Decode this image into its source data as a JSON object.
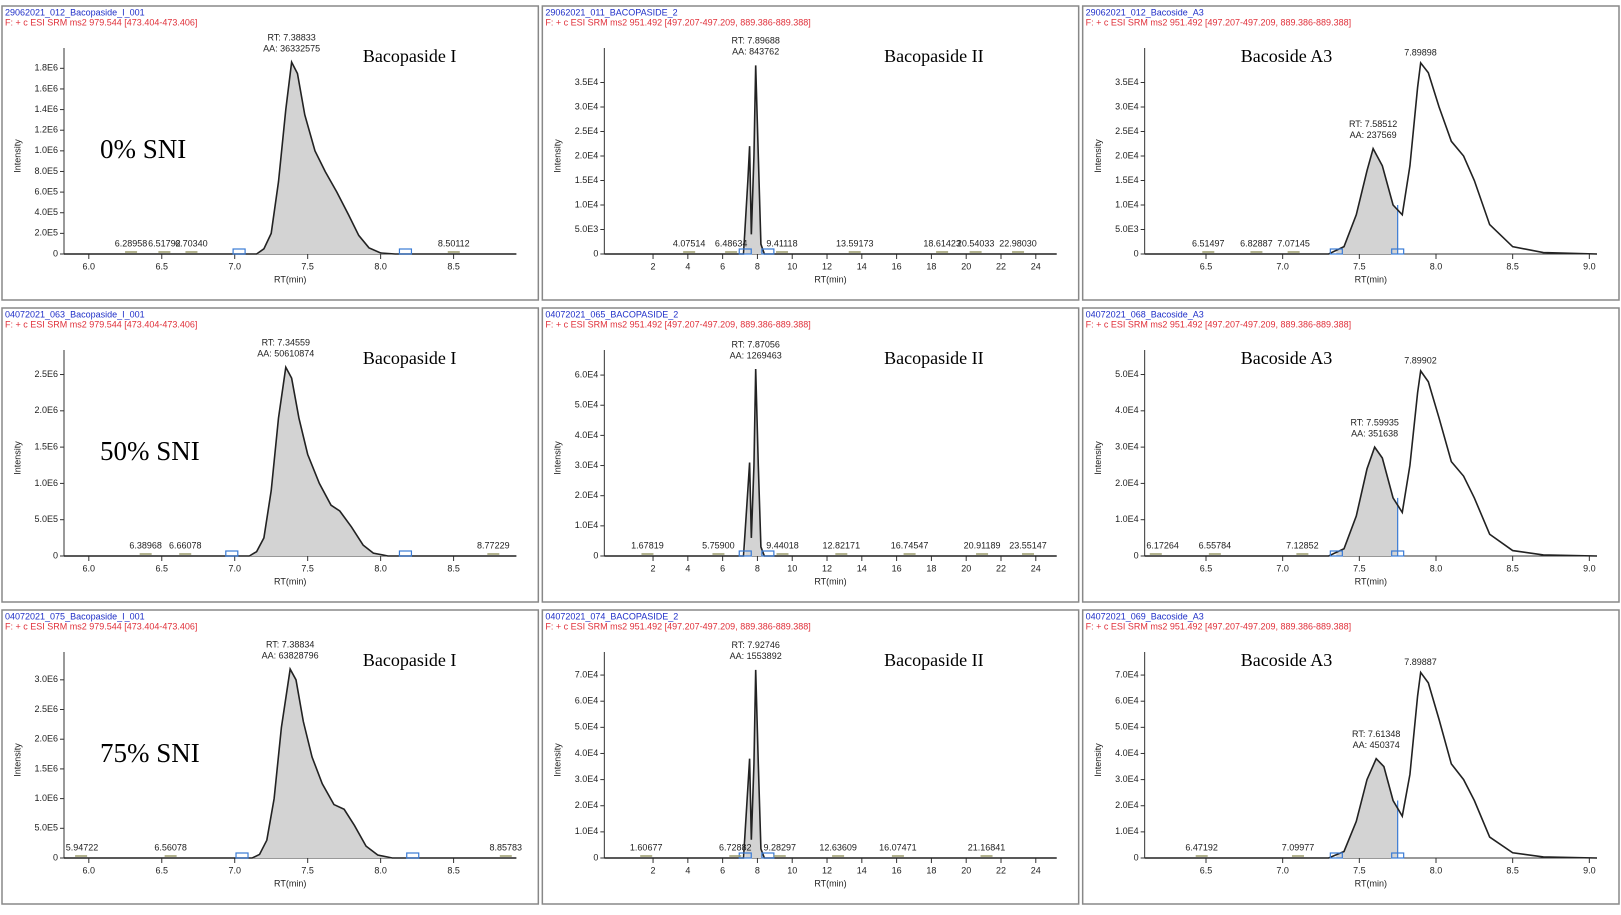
{
  "chart_data": [
    {
      "type": "line",
      "header_id": "29062021_012_Bacopaside_I_001",
      "header_filter": "F: + c ESI SRM ms2 979.544 [473.404-473.406]",
      "title": "Bacopaside I",
      "condition": "0% SNI",
      "xlabel": "RT(min)",
      "ylabel": "Intensity",
      "x": [
        5.83,
        7.15,
        7.2,
        7.25,
        7.3,
        7.35,
        7.39,
        7.43,
        7.48,
        7.55,
        7.62,
        7.7,
        7.78,
        7.85,
        7.92,
        8.0,
        8.1,
        8.93
      ],
      "values": [
        0,
        0,
        50000,
        200000,
        700000,
        1400000,
        1860000,
        1750000,
        1350000,
        1000000,
        800000,
        600000,
        380000,
        180000,
        60000,
        10000,
        0,
        0
      ],
      "xlim": [
        5.83,
        8.93
      ],
      "ylim": [
        0,
        1900000
      ],
      "xticks": [
        {
          "value": 6,
          "label": "6.0"
        },
        6.5,
        {
          "value": 7,
          "label": "7.0"
        },
        7.5,
        {
          "value": 8,
          "label": "8.0"
        },
        8.5
      ],
      "yticks": [
        0,
        {
          "value": 200000,
          "label": "2.0E5"
        },
        {
          "value": 400000,
          "label": "4.0E5"
        },
        {
          "value": 600000,
          "label": "6.0E5"
        },
        {
          "value": 800000,
          "label": "8.0E5"
        },
        {
          "value": 1000000,
          "label": "1.0E6"
        },
        {
          "value": 1200000,
          "label": "1.2E6"
        },
        {
          "value": 1400000,
          "label": "1.4E6"
        },
        {
          "value": 1600000,
          "label": "1.6E6"
        },
        {
          "value": 1800000,
          "label": "1.8E6"
        }
      ],
      "integration": [
        7.03,
        8.17
      ],
      "annotation": [
        "RT: 7.38833",
        "AA: 36332575"
      ],
      "peak_labels": [
        {
          "value": 6.28958,
          "label": "6.28958"
        },
        {
          "value": 6.51792,
          "label": "6.51792"
        },
        {
          "value": 6.7034,
          "label": "6.70340"
        },
        {
          "value": 8.50112,
          "label": "8.50112"
        }
      ],
      "color": "#222222",
      "fill": "#d3d3d3"
    },
    {
      "type": "line",
      "header_id": "29062021_011_BACOPASIDE_2",
      "header_filter": "F: + c ESI SRM ms2 951.492 [497.207-497.209, 889.386-889.388]",
      "title": "Bacopaside II",
      "xlabel": "RT(min)",
      "ylabel": "Intensity",
      "x": [
        -0.8,
        7.2,
        7.45,
        7.55,
        7.65,
        7.8,
        7.9,
        8.05,
        8.2,
        8.4,
        25.2
      ],
      "values": [
        0,
        0,
        15000,
        22000,
        4000,
        20000,
        38500,
        20000,
        2000,
        0,
        0
      ],
      "xlim": [
        -0.8,
        25.2
      ],
      "ylim": [
        0,
        40000
      ],
      "xticks": [
        2,
        4,
        6,
        8,
        10,
        12,
        14,
        16,
        18,
        20,
        22,
        24
      ],
      "yticks": [
        0,
        {
          "value": 5000,
          "label": "5.0E3"
        },
        {
          "value": 10000,
          "label": "1.0E4"
        },
        {
          "value": 15000,
          "label": "1.5E4"
        },
        {
          "value": 20000,
          "label": "2.0E4"
        },
        {
          "value": 25000,
          "label": "2.5E4"
        },
        {
          "value": 30000,
          "label": "3.0E4"
        },
        {
          "value": 35000,
          "label": "3.5E4"
        }
      ],
      "integration": [
        7.3,
        8.6
      ],
      "annotation": [
        "RT: 7.89688",
        "AA: 843762"
      ],
      "peak_labels": [
        {
          "value": 4.07514,
          "label": "4.07514"
        },
        {
          "value": 6.48634,
          "label": "6.48634"
        },
        {
          "value": 9.41118,
          "label": "9.41118"
        },
        {
          "value": 13.59173,
          "label": "13.59173"
        },
        {
          "value": 18.61423,
          "label": "18.61423"
        },
        {
          "value": 20.54033,
          "label": "20.54033"
        },
        {
          "value": 22.9803,
          "label": "22.98030"
        }
      ],
      "color": "#222222",
      "fill": "#d3d3d3"
    },
    {
      "type": "line",
      "header_id": "29062021_012_Bacoside_A3",
      "header_filter": "F: + c ESI SRM ms2 951.492 [497.207-497.209, 889.386-889.388]",
      "title": "Bacoside A3",
      "xlabel": "RT(min)",
      "ylabel": "Intensity",
      "x": [
        6.1,
        7.3,
        7.4,
        7.48,
        7.55,
        7.59,
        7.65,
        7.72,
        7.78,
        7.83,
        7.88,
        7.9,
        7.95,
        8.02,
        8.1,
        8.18,
        8.25,
        8.35,
        8.5,
        8.7,
        9.05
      ],
      "values": [
        0,
        0,
        1500,
        8000,
        17000,
        21500,
        18000,
        10000,
        8000,
        18000,
        34000,
        39000,
        37000,
        30000,
        23000,
        20000,
        15000,
        6000,
        1500,
        300,
        0
      ],
      "xlim": [
        6.1,
        9.05
      ],
      "ylim": [
        0,
        40000
      ],
      "xticks": [
        6.5,
        {
          "value": 7,
          "label": "7.0"
        },
        7.5,
        {
          "value": 8,
          "label": "8.0"
        },
        8.5,
        {
          "value": 9,
          "label": "9.0"
        }
      ],
      "yticks": [
        0,
        {
          "value": 5000,
          "label": "5.0E3"
        },
        {
          "value": 10000,
          "label": "1.0E4"
        },
        {
          "value": 15000,
          "label": "1.5E4"
        },
        {
          "value": 20000,
          "label": "2.0E4"
        },
        {
          "value": 25000,
          "label": "2.5E4"
        },
        {
          "value": 30000,
          "label": "3.0E4"
        },
        {
          "value": 35000,
          "label": "3.5E4"
        }
      ],
      "integration": [
        7.35,
        7.75
      ],
      "annotation": [
        "RT: 7.58512",
        "AA: 237569"
      ],
      "peak_labels": [
        {
          "value": 6.51497,
          "label": "6.51497"
        },
        {
          "value": 6.82887,
          "label": "6.82887"
        },
        {
          "value": 7.07145,
          "label": "7.07145"
        }
      ],
      "apex_label": {
        "value": 7.89898,
        "label": "7.89898"
      },
      "color": "#222222",
      "fill": "#d3d3d3"
    },
    {
      "type": "line",
      "header_id": "04072021_063_Bacopaside_I_001",
      "header_filter": "F: + c ESI SRM ms2 979.544 [473.404-473.406]",
      "title": "Bacopaside I",
      "condition": "50% SNI",
      "xlabel": "RT(min)",
      "ylabel": "Intensity",
      "x": [
        5.83,
        7.1,
        7.15,
        7.2,
        7.25,
        7.3,
        7.35,
        7.39,
        7.44,
        7.5,
        7.58,
        7.66,
        7.72,
        7.8,
        7.88,
        7.95,
        8.05,
        8.93
      ],
      "values": [
        0,
        0,
        60000,
        250000,
        900000,
        1900000,
        2600000,
        2450000,
        1900000,
        1400000,
        1000000,
        700000,
        620000,
        400000,
        150000,
        40000,
        0,
        0
      ],
      "xlim": [
        5.83,
        8.93
      ],
      "ylim": [
        0,
        2700000
      ],
      "xticks": [
        {
          "value": 6,
          "label": "6.0"
        },
        6.5,
        {
          "value": 7,
          "label": "7.0"
        },
        7.5,
        {
          "value": 8,
          "label": "8.0"
        },
        8.5
      ],
      "yticks": [
        0,
        {
          "value": 500000,
          "label": "5.0E5"
        },
        {
          "value": 1000000,
          "label": "1.0E6"
        },
        {
          "value": 1500000,
          "label": "1.5E6"
        },
        {
          "value": 2000000,
          "label": "2.0E6"
        },
        {
          "value": 2500000,
          "label": "2.5E6"
        }
      ],
      "integration": [
        6.98,
        8.17
      ],
      "annotation": [
        "RT: 7.34559",
        "AA: 50610874"
      ],
      "peak_labels": [
        {
          "value": 6.38968,
          "label": "6.38968"
        },
        {
          "value": 6.66078,
          "label": "6.66078"
        },
        {
          "value": 8.77229,
          "label": "8.77229"
        }
      ],
      "color": "#222222",
      "fill": "#d3d3d3"
    },
    {
      "type": "line",
      "header_id": "04072021_065_BACOPASIDE_2",
      "header_filter": "F: + c ESI SRM ms2 951.492 [497.207-497.209, 889.386-889.388]",
      "title": "Bacopaside II",
      "xlabel": "RT(min)",
      "ylabel": "Intensity",
      "x": [
        -0.8,
        7.2,
        7.45,
        7.55,
        7.65,
        7.8,
        7.9,
        8.05,
        8.2,
        8.4,
        25.2
      ],
      "values": [
        0,
        0,
        22000,
        31000,
        6000,
        30000,
        62000,
        30000,
        3000,
        0,
        0
      ],
      "xlim": [
        -0.8,
        25.2
      ],
      "ylim": [
        0,
        65000
      ],
      "xticks": [
        2,
        4,
        6,
        8,
        10,
        12,
        14,
        16,
        18,
        20,
        22,
        24
      ],
      "yticks": [
        0,
        {
          "value": 10000,
          "label": "1.0E4"
        },
        {
          "value": 20000,
          "label": "2.0E4"
        },
        {
          "value": 30000,
          "label": "3.0E4"
        },
        {
          "value": 40000,
          "label": "4.0E4"
        },
        {
          "value": 50000,
          "label": "5.0E4"
        },
        {
          "value": 60000,
          "label": "6.0E4"
        }
      ],
      "integration": [
        7.3,
        8.6
      ],
      "annotation": [
        "RT: 7.87056",
        "AA: 1269463"
      ],
      "peak_labels": [
        {
          "value": 1.67819,
          "label": "1.67819"
        },
        {
          "value": 5.759,
          "label": "5.75900"
        },
        {
          "value": 9.44018,
          "label": "9.44018"
        },
        {
          "value": 12.82171,
          "label": "12.82171"
        },
        {
          "value": 16.74547,
          "label": "16.74547"
        },
        {
          "value": 20.91189,
          "label": "20.91189"
        },
        {
          "value": 23.55147,
          "label": "23.55147"
        }
      ],
      "color": "#222222",
      "fill": "#d3d3d3"
    },
    {
      "type": "line",
      "header_id": "04072021_068_Bacoside_A3",
      "header_filter": "F: + c ESI SRM ms2 951.492 [497.207-497.209, 889.386-889.388]",
      "title": "Bacoside A3",
      "xlabel": "RT(min)",
      "ylabel": "Intensity",
      "x": [
        6.1,
        7.3,
        7.4,
        7.48,
        7.55,
        7.6,
        7.65,
        7.72,
        7.78,
        7.83,
        7.88,
        7.9,
        7.95,
        8.02,
        8.1,
        8.18,
        8.25,
        8.35,
        8.5,
        8.7,
        9.05
      ],
      "values": [
        0,
        0,
        2000,
        11000,
        24000,
        30000,
        27000,
        16000,
        12000,
        25000,
        45000,
        51000,
        48000,
        38000,
        26000,
        22000,
        16000,
        6000,
        1500,
        300,
        0
      ],
      "xlim": [
        6.1,
        9.05
      ],
      "ylim": [
        0,
        54000
      ],
      "xticks": [
        6.5,
        {
          "value": 7,
          "label": "7.0"
        },
        7.5,
        {
          "value": 8,
          "label": "8.0"
        },
        8.5,
        {
          "value": 9,
          "label": "9.0"
        }
      ],
      "yticks": [
        0,
        {
          "value": 10000,
          "label": "1.0E4"
        },
        {
          "value": 20000,
          "label": "2.0E4"
        },
        {
          "value": 30000,
          "label": "3.0E4"
        },
        {
          "value": 40000,
          "label": "4.0E4"
        },
        {
          "value": 50000,
          "label": "5.0E4"
        }
      ],
      "integration": [
        7.35,
        7.75
      ],
      "annotation": [
        "RT: 7.59935",
        "AA: 351638"
      ],
      "peak_labels": [
        {
          "value": 6.17264,
          "label": "6.17264"
        },
        {
          "value": 6.55784,
          "label": "6.55784"
        },
        {
          "value": 7.12852,
          "label": "7.12852"
        }
      ],
      "apex_label": {
        "value": 7.89902,
        "label": "7.89902"
      },
      "color": "#222222",
      "fill": "#d3d3d3"
    },
    {
      "type": "line",
      "header_id": "04072021_075_Bacopaside_I_001",
      "header_filter": "F: + c ESI SRM ms2 979.544 [473.404-473.406]",
      "title": "Bacopaside I",
      "condition": "75% SNI",
      "xlabel": "RT(min)",
      "ylabel": "Intensity",
      "x": [
        5.83,
        7.12,
        7.17,
        7.22,
        7.27,
        7.32,
        7.38,
        7.42,
        7.47,
        7.53,
        7.6,
        7.68,
        7.75,
        7.82,
        7.9,
        7.98,
        8.08,
        8.93
      ],
      "values": [
        0,
        0,
        60000,
        300000,
        1000000,
        2200000,
        3180000,
        3000000,
        2300000,
        1700000,
        1250000,
        900000,
        820000,
        550000,
        200000,
        50000,
        0,
        0
      ],
      "xlim": [
        5.83,
        8.93
      ],
      "ylim": [
        0,
        3300000
      ],
      "xticks": [
        {
          "value": 6,
          "label": "6.0"
        },
        6.5,
        {
          "value": 7,
          "label": "7.0"
        },
        7.5,
        {
          "value": 8,
          "label": "8.0"
        },
        8.5
      ],
      "yticks": [
        0,
        {
          "value": 500000,
          "label": "5.0E5"
        },
        {
          "value": 1000000,
          "label": "1.0E6"
        },
        {
          "value": 1500000,
          "label": "1.5E6"
        },
        {
          "value": 2000000,
          "label": "2.0E6"
        },
        {
          "value": 2500000,
          "label": "2.5E6"
        },
        {
          "value": 3000000,
          "label": "3.0E6"
        }
      ],
      "integration": [
        7.05,
        8.22
      ],
      "annotation": [
        "RT: 7.38834",
        "AA: 63828796"
      ],
      "peak_labels": [
        {
          "value": 5.94722,
          "label": "5.94722"
        },
        {
          "value": 6.56078,
          "label": "6.56078"
        },
        {
          "value": 8.85783,
          "label": "8.85783"
        }
      ],
      "color": "#222222",
      "fill": "#d3d3d3"
    },
    {
      "type": "line",
      "header_id": "04072021_074_BACOPASIDE_2",
      "header_filter": "F: + c ESI SRM ms2 951.492 [497.207-497.209, 889.386-889.388]",
      "title": "Bacopaside II",
      "xlabel": "RT(min)",
      "ylabel": "Intensity",
      "x": [
        -0.8,
        7.2,
        7.45,
        7.55,
        7.65,
        7.8,
        7.9,
        8.05,
        8.2,
        8.4,
        25.2
      ],
      "values": [
        0,
        0,
        27000,
        38000,
        7000,
        36000,
        72000,
        36000,
        3500,
        0,
        0
      ],
      "xlim": [
        -0.8,
        25.2
      ],
      "ylim": [
        0,
        75000
      ],
      "xticks": [
        2,
        4,
        6,
        8,
        10,
        12,
        14,
        16,
        18,
        20,
        22,
        24
      ],
      "yticks": [
        0,
        {
          "value": 10000,
          "label": "1.0E4"
        },
        {
          "value": 20000,
          "label": "2.0E4"
        },
        {
          "value": 30000,
          "label": "3.0E4"
        },
        {
          "value": 40000,
          "label": "4.0E4"
        },
        {
          "value": 50000,
          "label": "5.0E4"
        },
        {
          "value": 60000,
          "label": "6.0E4"
        },
        {
          "value": 70000,
          "label": "7.0E4"
        }
      ],
      "integration": [
        7.3,
        8.6
      ],
      "annotation": [
        "RT: 7.92746",
        "AA: 1553892"
      ],
      "peak_labels": [
        {
          "value": 1.60677,
          "label": "1.60677"
        },
        {
          "value": 6.72882,
          "label": "6.72882"
        },
        {
          "value": 9.28297,
          "label": "9.28297"
        },
        {
          "value": 12.63609,
          "label": "12.63609"
        },
        {
          "value": 16.07471,
          "label": "16.07471"
        },
        {
          "value": 21.16841,
          "label": "21.16841"
        }
      ],
      "color": "#222222",
      "fill": "#d3d3d3"
    },
    {
      "type": "line",
      "header_id": "04072021_069_Bacoside_A3",
      "header_filter": "F: + c ESI SRM ms2 951.492 [497.207-497.209, 889.386-889.388]",
      "title": "Bacoside A3",
      "xlabel": "RT(min)",
      "ylabel": "Intensity",
      "x": [
        6.1,
        7.3,
        7.4,
        7.48,
        7.55,
        7.61,
        7.66,
        7.72,
        7.78,
        7.83,
        7.88,
        7.9,
        7.95,
        8.02,
        8.1,
        8.18,
        8.25,
        8.35,
        8.5,
        8.7,
        9.05
      ],
      "values": [
        0,
        0,
        2500,
        14000,
        30000,
        38000,
        35000,
        22000,
        16000,
        32000,
        62000,
        71000,
        67000,
        53000,
        36000,
        30000,
        22000,
        8000,
        2000,
        400,
        0
      ],
      "xlim": [
        6.1,
        9.05
      ],
      "ylim": [
        0,
        75000
      ],
      "xticks": [
        6.5,
        {
          "value": 7,
          "label": "7.0"
        },
        7.5,
        {
          "value": 8,
          "label": "8.0"
        },
        8.5,
        {
          "value": 9,
          "label": "9.0"
        }
      ],
      "yticks": [
        0,
        {
          "value": 10000,
          "label": "1.0E4"
        },
        {
          "value": 20000,
          "label": "2.0E4"
        },
        {
          "value": 30000,
          "label": "3.0E4"
        },
        {
          "value": 40000,
          "label": "4.0E4"
        },
        {
          "value": 50000,
          "label": "5.0E4"
        },
        {
          "value": 60000,
          "label": "6.0E4"
        },
        {
          "value": 70000,
          "label": "7.0E4"
        }
      ],
      "integration": [
        7.35,
        7.75
      ],
      "annotation": [
        "RT: 7.61348",
        "AA: 450374"
      ],
      "peak_labels": [
        {
          "value": 6.47192,
          "label": "6.47192"
        },
        {
          "value": 7.09977,
          "label": "7.09977"
        }
      ],
      "apex_label": {
        "value": 7.89887,
        "label": "7.89887"
      },
      "color": "#222222",
      "fill": "#d3d3d3"
    }
  ]
}
